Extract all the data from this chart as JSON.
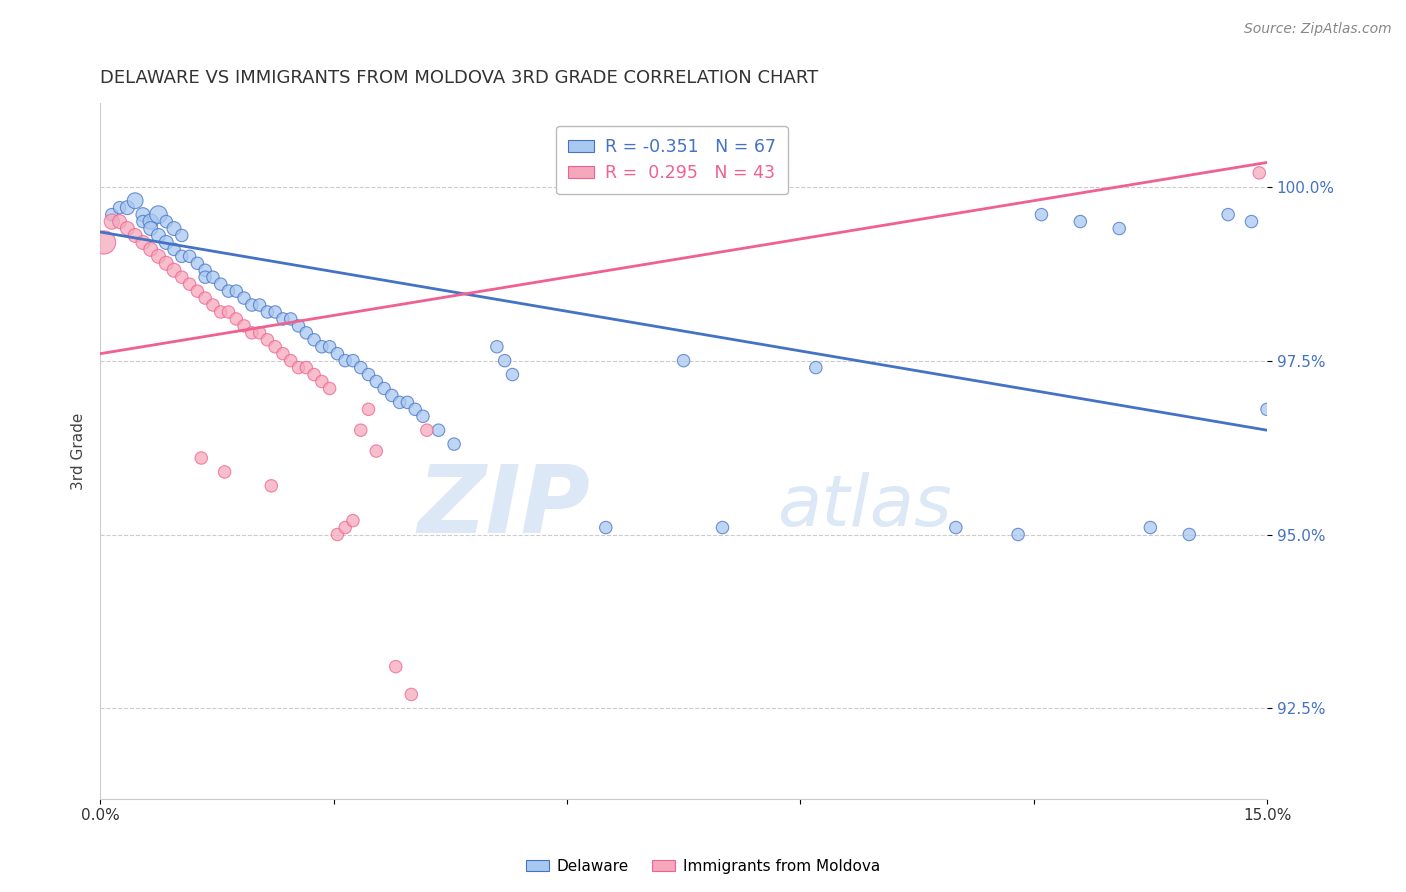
{
  "title": "DELAWARE VS IMMIGRANTS FROM MOLDOVA 3RD GRADE CORRELATION CHART",
  "source": "Source: ZipAtlas.com",
  "ylabel": "3rd Grade",
  "ytick_values": [
    92.5,
    95.0,
    97.5,
    100.0
  ],
  "xmin": 0.0,
  "xmax": 15.0,
  "ymin": 91.2,
  "ymax": 101.2,
  "legend_blue_label": "Delaware",
  "legend_pink_label": "Immigrants from Moldova",
  "r_blue": -0.351,
  "n_blue": 67,
  "r_pink": 0.295,
  "n_pink": 43,
  "blue_color": "#A8C8F0",
  "pink_color": "#F5A8BC",
  "blue_line_color": "#4472C4",
  "pink_line_color": "#F06090",
  "watermark_zip": "ZIP",
  "watermark_atlas": "atlas",
  "blue_trend_x": [
    0.0,
    15.0
  ],
  "blue_trend_y": [
    99.35,
    96.5
  ],
  "pink_trend_x": [
    0.0,
    15.0
  ],
  "pink_trend_y": [
    97.6,
    100.35
  ],
  "blue_scatter_x": [
    0.15,
    0.25,
    0.35,
    0.45,
    0.55,
    0.55,
    0.65,
    0.65,
    0.75,
    0.75,
    0.85,
    0.85,
    0.95,
    0.95,
    1.05,
    1.05,
    1.15,
    1.25,
    1.35,
    1.35,
    1.45,
    1.55,
    1.65,
    1.75,
    1.85,
    1.95,
    2.05,
    2.15,
    2.25,
    2.35,
    2.45,
    2.55,
    2.65,
    2.75,
    2.85,
    2.95,
    3.05,
    3.15,
    3.25,
    3.35,
    3.45,
    3.55,
    3.65,
    3.75,
    3.85,
    3.95,
    4.05,
    4.15,
    4.35,
    4.55,
    5.1,
    5.2,
    5.3,
    6.5,
    7.5,
    8.0,
    9.2,
    11.0,
    11.8,
    12.1,
    12.6,
    13.1,
    13.5,
    14.0,
    14.5,
    14.8,
    15.0
  ],
  "blue_scatter_y": [
    99.6,
    99.7,
    99.7,
    99.8,
    99.6,
    99.5,
    99.5,
    99.4,
    99.6,
    99.3,
    99.5,
    99.2,
    99.4,
    99.1,
    99.3,
    99.0,
    99.0,
    98.9,
    98.8,
    98.7,
    98.7,
    98.6,
    98.5,
    98.5,
    98.4,
    98.3,
    98.3,
    98.2,
    98.2,
    98.1,
    98.1,
    98.0,
    97.9,
    97.8,
    97.7,
    97.7,
    97.6,
    97.5,
    97.5,
    97.4,
    97.3,
    97.2,
    97.1,
    97.0,
    96.9,
    96.9,
    96.8,
    96.7,
    96.5,
    96.3,
    97.7,
    97.5,
    97.3,
    95.1,
    97.5,
    95.1,
    97.4,
    95.1,
    95.0,
    99.6,
    99.5,
    99.4,
    95.1,
    95.0,
    99.6,
    99.5,
    96.8
  ],
  "blue_scatter_sizes": [
    80,
    80,
    100,
    130,
    100,
    80,
    120,
    100,
    160,
    100,
    80,
    100,
    100,
    80,
    80,
    80,
    80,
    80,
    80,
    80,
    80,
    80,
    80,
    80,
    80,
    80,
    80,
    80,
    80,
    80,
    80,
    80,
    80,
    80,
    80,
    80,
    80,
    80,
    80,
    80,
    80,
    80,
    80,
    80,
    80,
    80,
    80,
    80,
    80,
    80,
    80,
    80,
    80,
    80,
    80,
    80,
    80,
    80,
    80,
    80,
    80,
    80,
    80,
    80,
    80,
    80,
    80
  ],
  "pink_scatter_x": [
    0.05,
    0.15,
    0.25,
    0.35,
    0.45,
    0.55,
    0.65,
    0.75,
    0.85,
    0.95,
    1.05,
    1.15,
    1.25,
    1.35,
    1.45,
    1.55,
    1.65,
    1.75,
    1.85,
    1.95,
    2.05,
    2.15,
    2.25,
    2.35,
    2.45,
    2.55,
    2.65,
    2.75,
    2.85,
    2.95,
    3.05,
    3.15,
    3.25,
    3.35,
    3.45,
    3.55,
    1.3,
    1.6,
    2.2,
    3.8,
    4.0,
    4.2,
    14.9
  ],
  "pink_scatter_y": [
    99.2,
    99.5,
    99.5,
    99.4,
    99.3,
    99.2,
    99.1,
    99.0,
    98.9,
    98.8,
    98.7,
    98.6,
    98.5,
    98.4,
    98.3,
    98.2,
    98.2,
    98.1,
    98.0,
    97.9,
    97.9,
    97.8,
    97.7,
    97.6,
    97.5,
    97.4,
    97.4,
    97.3,
    97.2,
    97.1,
    95.0,
    95.1,
    95.2,
    96.5,
    96.8,
    96.2,
    96.1,
    95.9,
    95.7,
    93.1,
    92.7,
    96.5,
    100.2
  ],
  "pink_scatter_sizes": [
    280,
    120,
    100,
    100,
    100,
    100,
    100,
    100,
    100,
    100,
    80,
    80,
    80,
    80,
    80,
    80,
    80,
    80,
    80,
    80,
    80,
    80,
    80,
    80,
    80,
    80,
    80,
    80,
    80,
    80,
    80,
    80,
    80,
    80,
    80,
    80,
    80,
    80,
    80,
    80,
    80,
    80,
    80
  ]
}
